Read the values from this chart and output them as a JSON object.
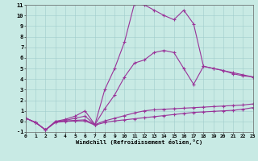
{
  "xlabel": "Windchill (Refroidissement éolien,°C)",
  "bg_color": "#c8eae4",
  "line_color": "#993399",
  "grid_color": "#a0cccc",
  "xlim": [
    0,
    23
  ],
  "ylim": [
    -1,
    11
  ],
  "xticks": [
    0,
    1,
    2,
    3,
    4,
    5,
    6,
    7,
    8,
    9,
    10,
    11,
    12,
    13,
    14,
    15,
    16,
    17,
    18,
    19,
    20,
    21,
    22,
    23
  ],
  "yticks": [
    -1,
    0,
    1,
    2,
    3,
    4,
    5,
    6,
    7,
    8,
    9,
    10,
    11
  ],
  "series": [
    {
      "x": [
        0,
        1,
        2,
        3,
        4,
        5,
        6,
        7,
        8,
        9,
        10,
        11,
        12,
        13,
        14,
        15,
        16,
        17,
        18,
        19,
        20,
        21,
        22,
        23
      ],
      "y": [
        0.3,
        -0.1,
        -0.8,
        -0.1,
        0.0,
        0.05,
        0.05,
        -0.35,
        -0.1,
        0.05,
        0.15,
        0.25,
        0.35,
        0.45,
        0.55,
        0.65,
        0.75,
        0.85,
        0.9,
        0.95,
        1.0,
        1.05,
        1.15,
        1.3
      ]
    },
    {
      "x": [
        0,
        1,
        2,
        3,
        4,
        5,
        6,
        7,
        8,
        9,
        10,
        11,
        12,
        13,
        14,
        15,
        16,
        17,
        18,
        19,
        20,
        21,
        22,
        23
      ],
      "y": [
        0.3,
        -0.1,
        -0.8,
        -0.05,
        0.05,
        0.1,
        0.15,
        -0.3,
        0.05,
        0.3,
        0.55,
        0.8,
        1.0,
        1.1,
        1.15,
        1.2,
        1.25,
        1.3,
        1.35,
        1.4,
        1.45,
        1.5,
        1.55,
        1.65
      ]
    },
    {
      "x": [
        0,
        1,
        2,
        3,
        4,
        5,
        6,
        7,
        8,
        9,
        10,
        11,
        12,
        13,
        14,
        15,
        16,
        17,
        18,
        19,
        20,
        21,
        22,
        23
      ],
      "y": [
        0.3,
        -0.1,
        -0.8,
        0.0,
        0.1,
        0.3,
        0.5,
        -0.3,
        1.2,
        2.5,
        4.2,
        5.5,
        5.8,
        6.5,
        6.7,
        6.5,
        5.0,
        3.5,
        5.2,
        5.0,
        4.8,
        4.5,
        4.3,
        4.2
      ]
    },
    {
      "x": [
        0,
        1,
        2,
        3,
        4,
        5,
        6,
        7,
        8,
        9,
        10,
        11,
        12,
        13,
        14,
        15,
        16,
        17,
        18,
        19,
        20,
        21,
        22,
        23
      ],
      "y": [
        0.3,
        -0.1,
        -0.8,
        0.0,
        0.2,
        0.5,
        1.0,
        -0.3,
        3.0,
        5.0,
        7.5,
        11.1,
        11.0,
        10.5,
        10.0,
        9.6,
        10.5,
        9.2,
        5.2,
        5.0,
        4.8,
        4.6,
        4.4,
        4.2
      ]
    }
  ]
}
